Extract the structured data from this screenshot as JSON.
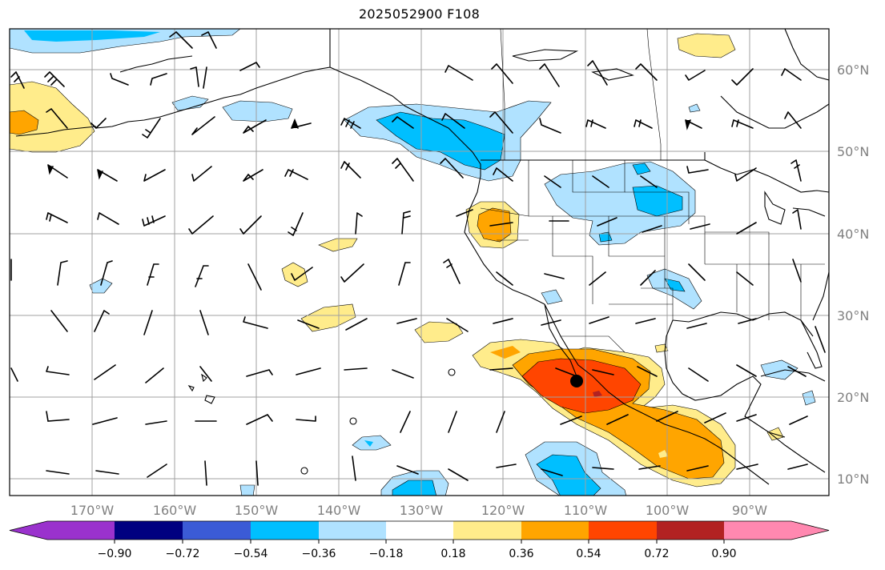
{
  "title": "2025052900 F108",
  "lat_labels": [
    "60°N",
    "50°N",
    "40°N",
    "30°N",
    "20°N",
    "10°N"
  ],
  "lon_labels": [
    "170°W",
    "160°W",
    "150°W",
    "140°W",
    "130°W",
    "120°W",
    "110°W",
    "100°W",
    "90°W"
  ],
  "colorbar": {
    "colors": [
      "#9a32cd",
      "#000080",
      "#3b5bd6",
      "#00bfff",
      "#b0e2ff",
      "#ffffff",
      "#ffec8b",
      "#ffa500",
      "#ff4500",
      "#b22222",
      "#ff88b0"
    ],
    "tick_labels": [
      "−0.90",
      "−0.72",
      "−0.54",
      "−0.36",
      "−0.18",
      "0.18",
      "0.36",
      "0.54",
      "0.72",
      "0.90"
    ]
  }
}
